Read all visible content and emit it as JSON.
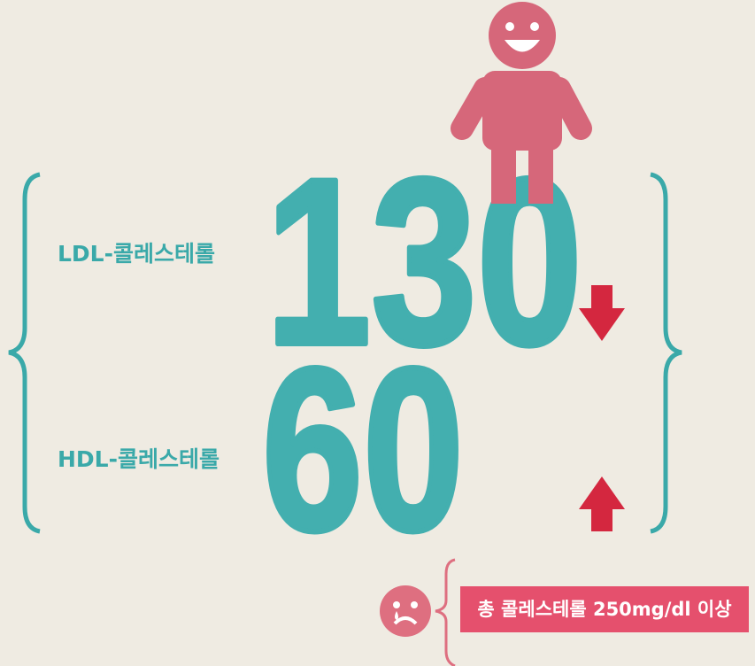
{
  "items": [
    {
      "label": "LDL-콜레스테롤",
      "value": 130
    },
    {
      "label": "HDL-콜레스테롤",
      "value": 60
    }
  ],
  "note": "총 콜레스테롤 250mg/dl 이상"
}
